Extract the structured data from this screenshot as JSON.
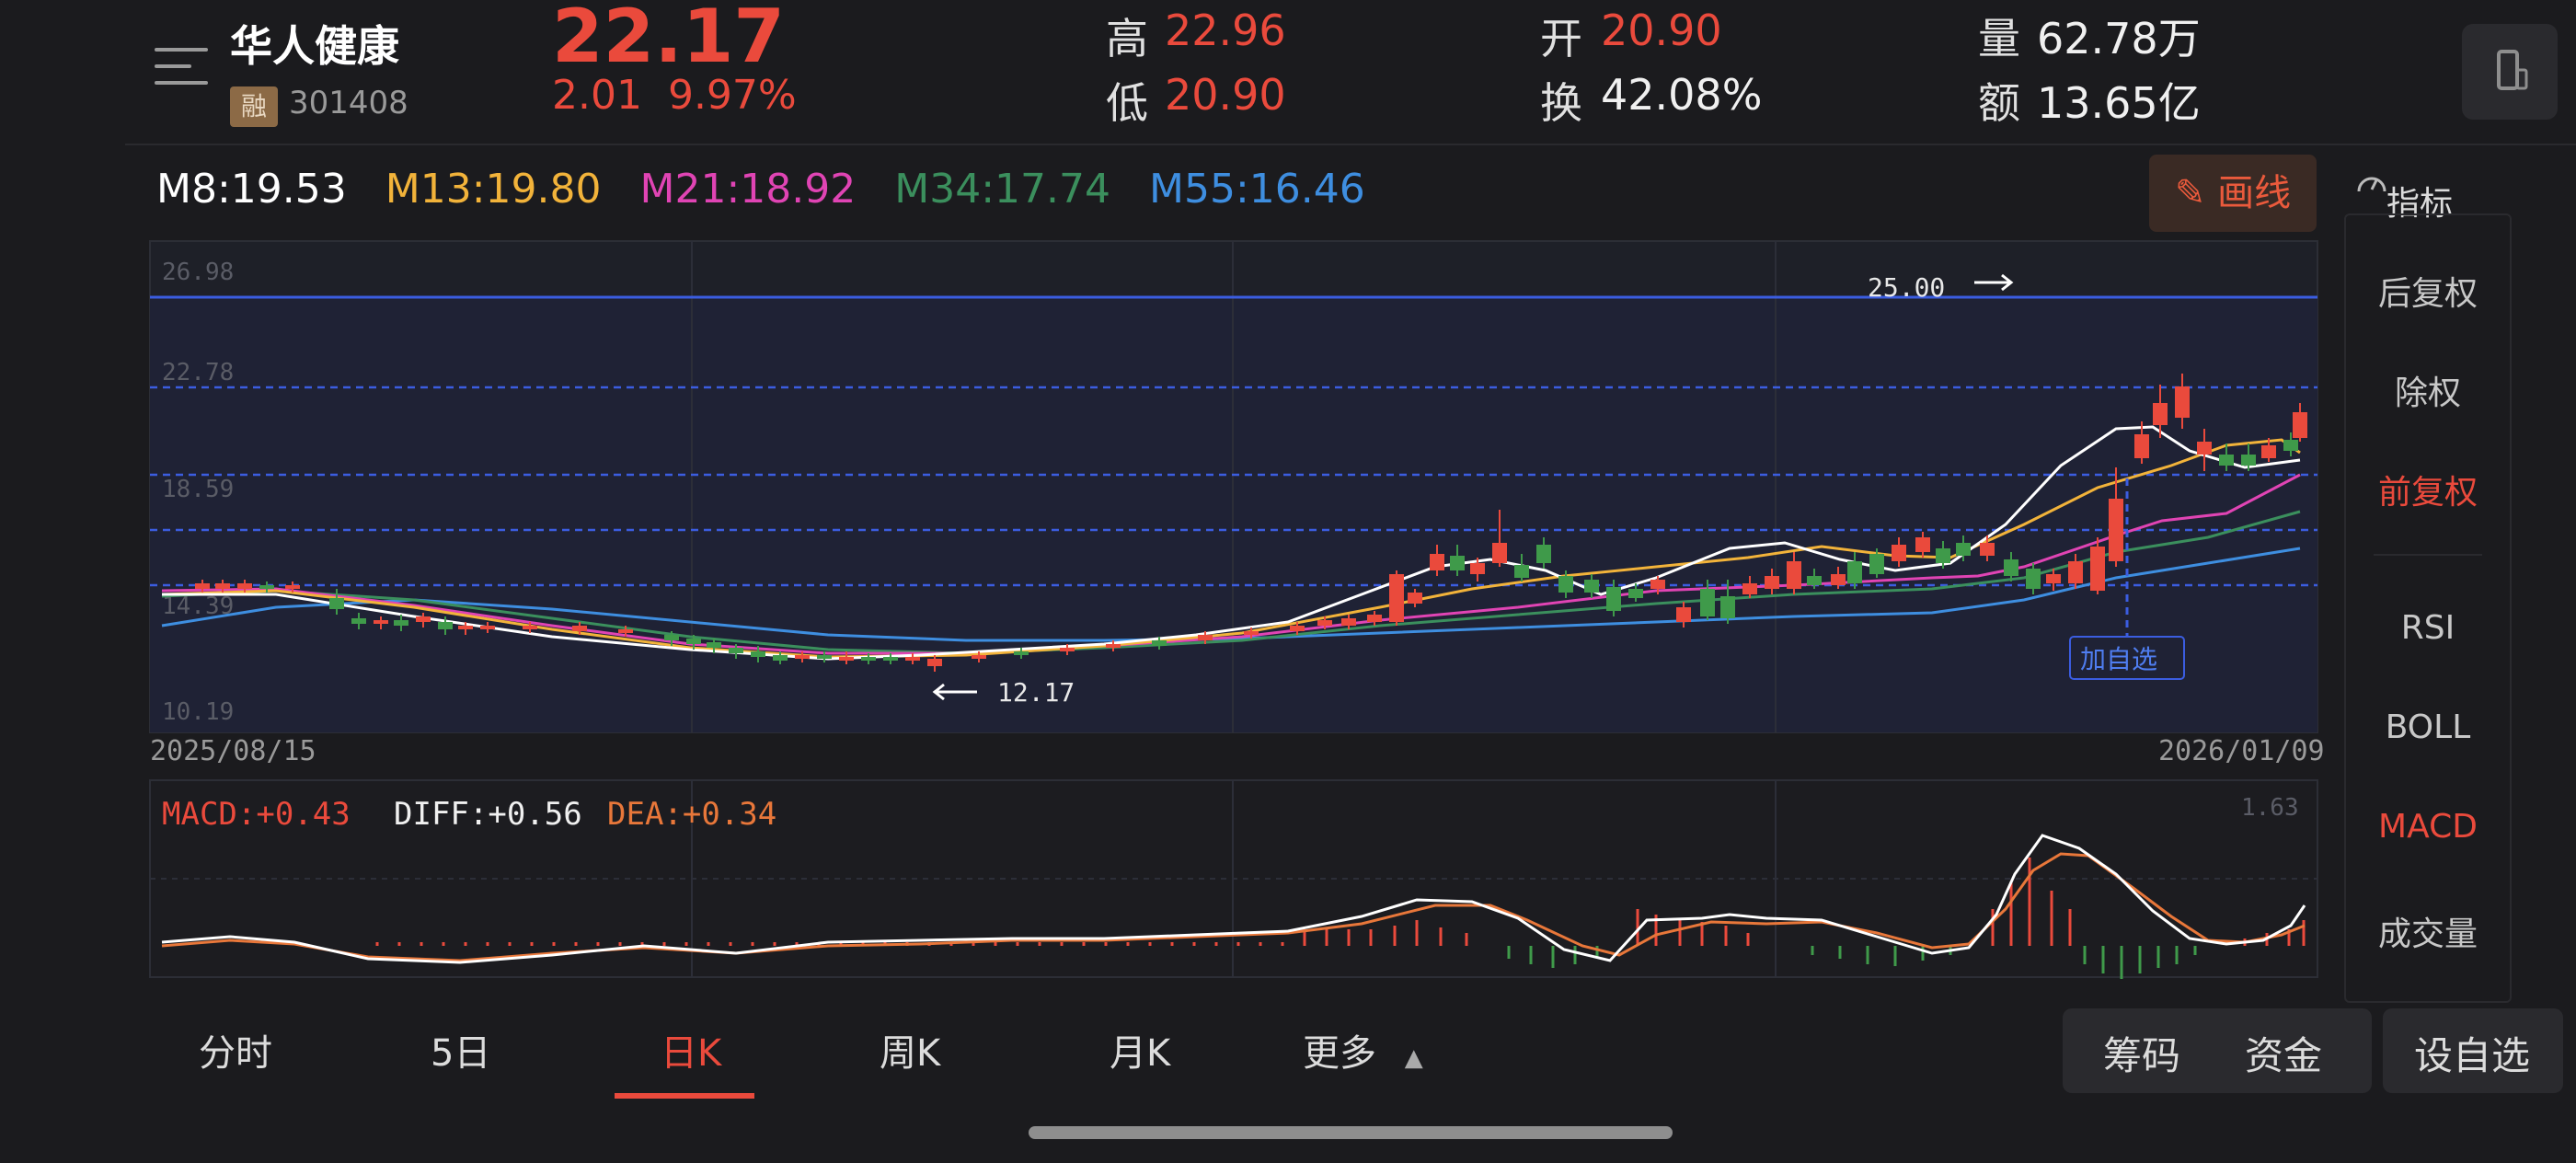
{
  "header": {
    "name": "华人健康",
    "badge": "融",
    "code": "301408",
    "price": "22.17",
    "change": "2.01",
    "change_pct": "9.97%",
    "quotes": {
      "high_label": "高",
      "high": "22.96",
      "low_label": "低",
      "low": "20.90",
      "open_label": "开",
      "open": "20.90",
      "turnover_label": "换",
      "turnover": "42.08%",
      "volume_label": "量",
      "volume": "62.78万",
      "amount_label": "额",
      "amount": "13.65亿"
    }
  },
  "ma_legend": {
    "m8": "M8:19.53",
    "m13": "M13:19.80",
    "m21": "M21:18.92",
    "m34": "M34:17.74",
    "m55": "M55:16.46"
  },
  "draw_button": "画线",
  "side_panel": {
    "title": "指标",
    "items": [
      "后复权",
      "除权",
      "前复权",
      "RSI",
      "BOLL",
      "MACD",
      "成交量"
    ],
    "active": [
      "前复权",
      "MACD"
    ]
  },
  "main_chart": {
    "y_ticks": [
      "26.98",
      "22.78",
      "18.59",
      "14.39",
      "10.19"
    ],
    "x_start": "2025/08/15",
    "x_end": "2026/01/09",
    "max_marker": "25.00",
    "min_marker": "12.17",
    "add_watch_label": "加自选"
  },
  "macd": {
    "macd": "MACD:+0.43",
    "diff": "DIFF:+0.56",
    "dea": "DEA:+0.34",
    "top_value": "1.63"
  },
  "tabs": [
    "分时",
    "5日",
    "日K",
    "周K",
    "月K",
    "更多"
  ],
  "active_tab": "日K",
  "buttons": {
    "chips": "筹码",
    "funds": "资金",
    "add_watch": "设自选"
  },
  "colors": {
    "up": "#ea4a3c",
    "down": "#3f9a4a",
    "m8": "#ffffff",
    "m13": "#f2b33a",
    "m21": "#e044b4",
    "m34": "#3b8f5d",
    "m55": "#3e8ee0"
  }
}
